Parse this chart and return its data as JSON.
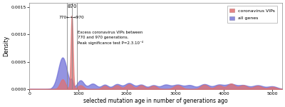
{
  "title": "",
  "xlabel": "selected mutation age in number of generations ago",
  "ylabel": "Density",
  "xlim": [
    0,
    5200
  ],
  "ylim": [
    0,
    0.00158
  ],
  "yticks": [
    0.0,
    0.0005,
    0.001,
    0.0015
  ],
  "ytick_labels": [
    "0.0000",
    "0.0005",
    "0.0010",
    "0.0015"
  ],
  "xticks": [
    0,
    1000,
    2000,
    3000,
    4000,
    5000
  ],
  "vline1": 770,
  "vline2": 870,
  "vline3": 970,
  "peak_label": "870",
  "annotation": "Excess coronavirus VIPs between\n770 and 970 generations.\nPeak significance test P=2.3.10⁻⁴",
  "color_vips_fill": "#e07070",
  "color_all_fill": "#7070d8",
  "legend_vips": "coronavirus VIPs",
  "legend_all": "all genes",
  "background": "#ffffff"
}
